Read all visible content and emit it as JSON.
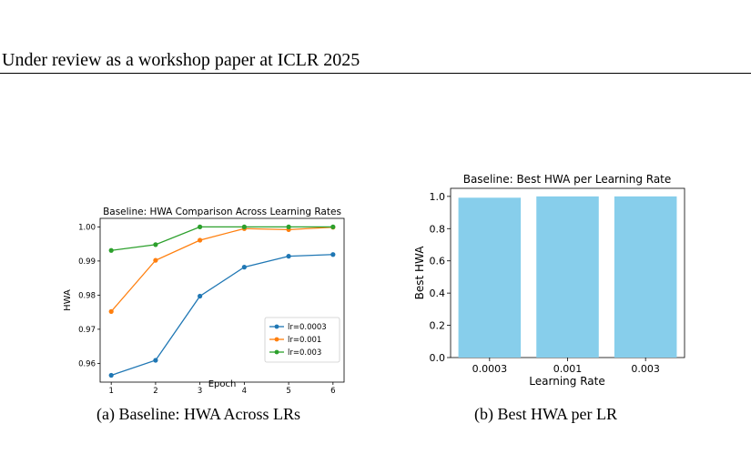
{
  "header": {
    "text": "Under review as a workshop paper at ICLR 2025"
  },
  "figures": [
    {
      "caption_tag": "(a)",
      "caption_text": "Baseline: HWA Across LRs"
    },
    {
      "caption_tag": "(b)",
      "caption_text": "Best HWA per LR"
    }
  ],
  "chart_data": [
    {
      "type": "line",
      "title": "Baseline: HWA Comparison Across Learning Rates",
      "xlabel": "Epoch",
      "ylabel": "HWA",
      "x": [
        1,
        2,
        3,
        4,
        5,
        6
      ],
      "x_ticks": [
        "1",
        "2",
        "3",
        "4",
        "5",
        "6"
      ],
      "xlim": [
        0.75,
        6.25
      ],
      "ylim": [
        0.9545,
        1.0025
      ],
      "y_ticks": [
        0.96,
        0.97,
        0.98,
        0.99,
        1.0
      ],
      "y_tick_labels": [
        "0.96",
        "0.97",
        "0.98",
        "0.99",
        "1.00"
      ],
      "legend_position": "lower-right",
      "series": [
        {
          "name": "lr=0.0003",
          "color": "#1f77b4",
          "values": [
            0.9565,
            0.9609,
            0.9797,
            0.9882,
            0.9914,
            0.9919
          ]
        },
        {
          "name": "lr=0.001",
          "color": "#ff7f0e",
          "values": [
            0.9752,
            0.9902,
            0.9961,
            0.9995,
            0.9992,
            0.9999
          ]
        },
        {
          "name": "lr=0.003",
          "color": "#2ca02c",
          "values": [
            0.9931,
            0.9948,
            1.0,
            1.0,
            1.0,
            1.0
          ]
        }
      ]
    },
    {
      "type": "bar",
      "title": "Baseline: Best HWA per Learning Rate",
      "xlabel": "Learning Rate",
      "ylabel": "Best HWA",
      "categories": [
        "0.0003",
        "0.001",
        "0.003"
      ],
      "values": [
        0.9919,
        0.9999,
        1.0
      ],
      "ylim": [
        0,
        1.05
      ],
      "y_ticks": [
        0.0,
        0.2,
        0.4,
        0.6,
        0.8,
        1.0
      ],
      "y_tick_labels": [
        "0.0",
        "0.2",
        "0.4",
        "0.6",
        "0.8",
        "1.0"
      ],
      "color": "#87ceeb"
    }
  ]
}
